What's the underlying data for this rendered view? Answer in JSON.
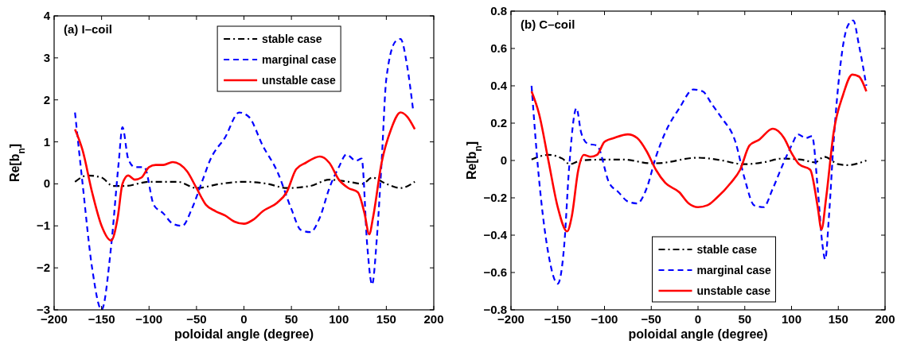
{
  "chart_data": [
    {
      "type": "line",
      "title": "(a) I–coil",
      "xlabel": "poloidal angle (degree)",
      "ylabel": "Re[b$_{n}$]",
      "xlim": [
        -200,
        200
      ],
      "xticks": [
        -200,
        -150,
        -100,
        -50,
        0,
        50,
        100,
        150,
        200
      ],
      "ylim": [
        -3,
        4
      ],
      "yticks": [
        -3,
        -2,
        -1,
        0,
        1,
        2,
        3,
        4
      ],
      "grid": false,
      "legend": "top right",
      "marker": "none",
      "series": [
        {
          "name": "stable case",
          "color": "#000000",
          "line_style": "dashdot",
          "x": [
            -178,
            -165,
            -150,
            -138,
            -125,
            -100,
            -80,
            -70,
            -50,
            -25,
            0,
            25,
            45,
            70,
            90,
            110,
            125,
            135,
            150,
            165,
            180
          ],
          "values": [
            0.05,
            0.2,
            0.15,
            -0.05,
            -0.05,
            0.05,
            0.05,
            0.05,
            -0.1,
            0,
            0.05,
            0,
            -0.1,
            -0.05,
            0.1,
            0.05,
            0,
            0.15,
            0,
            -0.1,
            0.05
          ]
        },
        {
          "name": "marginal case",
          "color": "#0000ff",
          "line_style": "dashed",
          "x": [
            -178,
            -170,
            -160,
            -150,
            -140,
            -132,
            -128,
            -122,
            -115,
            -105,
            -95,
            -85,
            -75,
            -65,
            -55,
            -45,
            -35,
            -20,
            -5,
            5,
            20,
            35,
            50,
            60,
            70,
            80,
            90,
            100,
            108,
            118,
            124,
            130,
            135,
            140,
            145,
            150,
            160,
            165,
            172,
            178
          ],
          "values": [
            1.7,
            0,
            -2,
            -3,
            -1.5,
            0.5,
            1.35,
            0.6,
            0.4,
            0.4,
            -0.5,
            -0.7,
            -0.95,
            -1,
            -0.6,
            0,
            0.6,
            1.1,
            1.7,
            1.6,
            0.9,
            0.3,
            -0.6,
            -1.1,
            -1.15,
            -0.8,
            -0.1,
            0.4,
            0.7,
            0.55,
            0.6,
            -1.5,
            -2.4,
            -1.3,
            0.5,
            2.5,
            3.4,
            3.45,
            2.8,
            1.8
          ]
        },
        {
          "name": "unstable case",
          "color": "#ff0000",
          "line_style": "solid",
          "x": [
            -178,
            -170,
            -160,
            -150,
            -140,
            -133,
            -128,
            -122,
            -115,
            -108,
            -100,
            -93,
            -85,
            -75,
            -60,
            -50,
            -40,
            -30,
            -20,
            -10,
            0,
            10,
            20,
            35,
            45,
            55,
            65,
            80,
            90,
            100,
            110,
            120,
            127,
            132,
            136,
            145,
            155,
            165,
            172,
            180
          ],
          "values": [
            1.3,
            0.8,
            -0.2,
            -1,
            -1.35,
            -0.8,
            0,
            0.2,
            0.1,
            0.15,
            0.4,
            0.45,
            0.45,
            0.52,
            0.3,
            -0.1,
            -0.5,
            -0.65,
            -0.75,
            -0.9,
            -0.95,
            -0.85,
            -0.65,
            -0.45,
            -0.2,
            0.35,
            0.5,
            0.65,
            0.5,
            0.1,
            -0.1,
            -0.2,
            -0.7,
            -1.2,
            -0.8,
            0.5,
            1.3,
            1.7,
            1.6,
            1.3
          ]
        }
      ]
    },
    {
      "type": "line",
      "title": "(b) C–coil",
      "xlabel": "poloidal angle (degree)",
      "ylabel": "Re[b$_{n}$]",
      "xlim": [
        -200,
        200
      ],
      "xticks": [
        -200,
        -150,
        -100,
        -50,
        0,
        50,
        100,
        150,
        200
      ],
      "ylim": [
        -0.8,
        0.8
      ],
      "yticks": [
        -0.8,
        -0.6,
        -0.4,
        -0.2,
        0,
        0.2,
        0.4,
        0.6,
        0.8
      ],
      "grid": false,
      "legend": "bottom",
      "marker": "none",
      "series": [
        {
          "name": "stable case",
          "color": "#000000",
          "line_style": "dashdot",
          "x": [
            -178,
            -160,
            -145,
            -137,
            -125,
            -100,
            -80,
            -50,
            -45,
            0,
            20,
            50,
            70,
            90,
            110,
            125,
            135,
            150,
            160,
            180
          ],
          "values": [
            0.005,
            0.03,
            0.01,
            -0.02,
            0,
            0.005,
            0.005,
            -0.015,
            -0.015,
            0.015,
            0.005,
            -0.02,
            -0.01,
            0.01,
            0.005,
            -0.01,
            0.02,
            -0.02,
            -0.025,
            0
          ]
        },
        {
          "name": "marginal case",
          "color": "#0000ff",
          "line_style": "dashed",
          "x": [
            -178,
            -170,
            -160,
            -150,
            -143,
            -138,
            -130,
            -125,
            -118,
            -108,
            -95,
            -85,
            -75,
            -65,
            -55,
            -45,
            -35,
            -20,
            -5,
            5,
            15,
            25,
            40,
            50,
            60,
            70,
            80,
            90,
            100,
            107,
            115,
            122,
            128,
            133,
            136,
            140,
            145,
            152,
            160,
            166,
            172,
            180
          ],
          "values": [
            0.4,
            -0.1,
            -0.5,
            -0.66,
            -0.45,
            -0.05,
            0.28,
            0.15,
            0.09,
            0.08,
            -0.12,
            -0.17,
            -0.22,
            -0.23,
            -0.15,
            0.02,
            0.15,
            0.28,
            0.38,
            0.37,
            0.3,
            0.23,
            0.1,
            -0.1,
            -0.24,
            -0.25,
            -0.15,
            -0.03,
            0.08,
            0.14,
            0.12,
            0.13,
            -0.15,
            -0.45,
            -0.53,
            -0.3,
            0.1,
            0.5,
            0.72,
            0.75,
            0.62,
            0.4
          ]
        },
        {
          "name": "unstable case",
          "color": "#ff0000",
          "line_style": "solid",
          "x": [
            -178,
            -170,
            -160,
            -150,
            -140,
            -135,
            -128,
            -122,
            -115,
            -108,
            -100,
            -90,
            -75,
            -65,
            -55,
            -45,
            -35,
            -20,
            -10,
            0,
            10,
            20,
            35,
            45,
            55,
            65,
            80,
            92,
            100,
            108,
            120,
            128,
            132,
            137,
            145,
            155,
            165,
            172,
            180
          ],
          "values": [
            0.37,
            0.25,
            0,
            -0.25,
            -0.38,
            -0.3,
            -0.05,
            0.03,
            0.02,
            0.03,
            0.1,
            0.12,
            0.14,
            0.12,
            0.05,
            -0.05,
            -0.12,
            -0.17,
            -0.23,
            -0.25,
            -0.24,
            -0.2,
            -0.12,
            -0.05,
            0.08,
            0.11,
            0.17,
            0.12,
            0.04,
            -0.02,
            -0.05,
            -0.25,
            -0.37,
            -0.2,
            0.15,
            0.35,
            0.46,
            0.45,
            0.37
          ]
        }
      ]
    }
  ]
}
